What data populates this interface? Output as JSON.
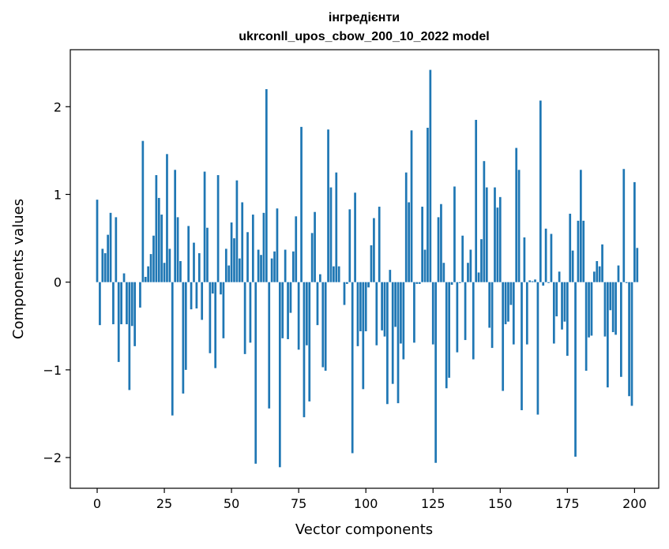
{
  "chart_data": {
    "type": "bar",
    "title_line1": "інгредієнти",
    "title_line2": "ukrconll_upos_cbow_200_10_2022 model",
    "xlabel": "Vector components",
    "ylabel": "Components values",
    "xlim": [
      -10,
      209
    ],
    "ylim": [
      -2.35,
      2.65
    ],
    "x_ticks": [
      0,
      25,
      50,
      75,
      100,
      125,
      150,
      175,
      200
    ],
    "x_tick_labels": [
      "0",
      "25",
      "50",
      "75",
      "100",
      "125",
      "150",
      "175",
      "200"
    ],
    "y_ticks": [
      -2,
      -1,
      0,
      1,
      2
    ],
    "y_tick_labels": [
      "−2",
      "−1",
      "0",
      "1",
      "2"
    ],
    "bar_color": "#1f77b4",
    "values": [
      0.94,
      -0.49,
      0.38,
      0.33,
      0.54,
      0.79,
      -0.48,
      0.74,
      -0.91,
      -0.48,
      0.1,
      -0.48,
      -1.23,
      -0.5,
      -0.73,
      0.0,
      -0.29,
      1.61,
      0.06,
      0.18,
      0.32,
      0.53,
      1.22,
      0.96,
      0.77,
      0.22,
      1.46,
      0.38,
      -1.52,
      1.28,
      0.74,
      0.24,
      -1.27,
      -1.0,
      0.64,
      -0.31,
      0.45,
      -0.3,
      0.33,
      -0.43,
      1.26,
      0.62,
      -0.81,
      -0.13,
      -0.98,
      1.22,
      -0.14,
      -0.64,
      0.38,
      0.19,
      0.68,
      0.5,
      1.16,
      0.27,
      0.91,
      -0.82,
      0.57,
      -0.69,
      0.77,
      -2.07,
      0.37,
      0.31,
      0.79,
      2.2,
      -1.44,
      0.27,
      0.35,
      0.84,
      -2.11,
      -0.64,
      0.37,
      -0.65,
      -0.35,
      0.35,
      0.75,
      -0.77,
      1.77,
      -1.54,
      -0.72,
      -1.36,
      0.56,
      0.8,
      -0.49,
      0.09,
      -0.97,
      -1.01,
      1.74,
      1.08,
      0.18,
      1.25,
      0.18,
      0.0,
      -0.26,
      -0.02,
      0.83,
      -1.95,
      1.02,
      -0.73,
      -0.56,
      -1.22,
      -0.56,
      -0.06,
      0.42,
      0.73,
      -0.72,
      0.86,
      -0.55,
      -0.62,
      -1.39,
      0.14,
      -1.16,
      -0.51,
      -1.38,
      -0.7,
      -0.88,
      1.25,
      0.91,
      1.73,
      -0.69,
      -0.02,
      -0.02,
      0.86,
      0.37,
      1.76,
      2.42,
      -0.71,
      -2.06,
      0.74,
      0.89,
      0.22,
      -1.21,
      -1.09,
      -0.03,
      1.09,
      -0.8,
      -0.01,
      0.53,
      -0.66,
      0.22,
      0.37,
      -0.88,
      1.85,
      0.11,
      0.49,
      1.38,
      1.08,
      -0.52,
      -0.75,
      1.08,
      0.85,
      0.97,
      -1.24,
      -0.48,
      -0.45,
      -0.26,
      -0.71,
      1.53,
      1.28,
      -1.46,
      0.51,
      -0.71,
      0.02,
      0.01,
      0.03,
      -1.51,
      2.07,
      -0.04,
      0.61,
      -0.01,
      0.55,
      -0.7,
      -0.39,
      0.12,
      -0.54,
      -0.45,
      -0.84,
      0.78,
      0.36,
      -1.99,
      0.7,
      1.28,
      0.7,
      -1.01,
      -0.63,
      -0.61,
      0.12,
      0.24,
      0.18,
      0.43,
      -0.62,
      -1.2,
      -0.32,
      -0.57,
      -0.6,
      0.19,
      -1.08,
      1.29,
      -0.01,
      -1.3,
      -1.41,
      1.14,
      0.39
    ]
  }
}
